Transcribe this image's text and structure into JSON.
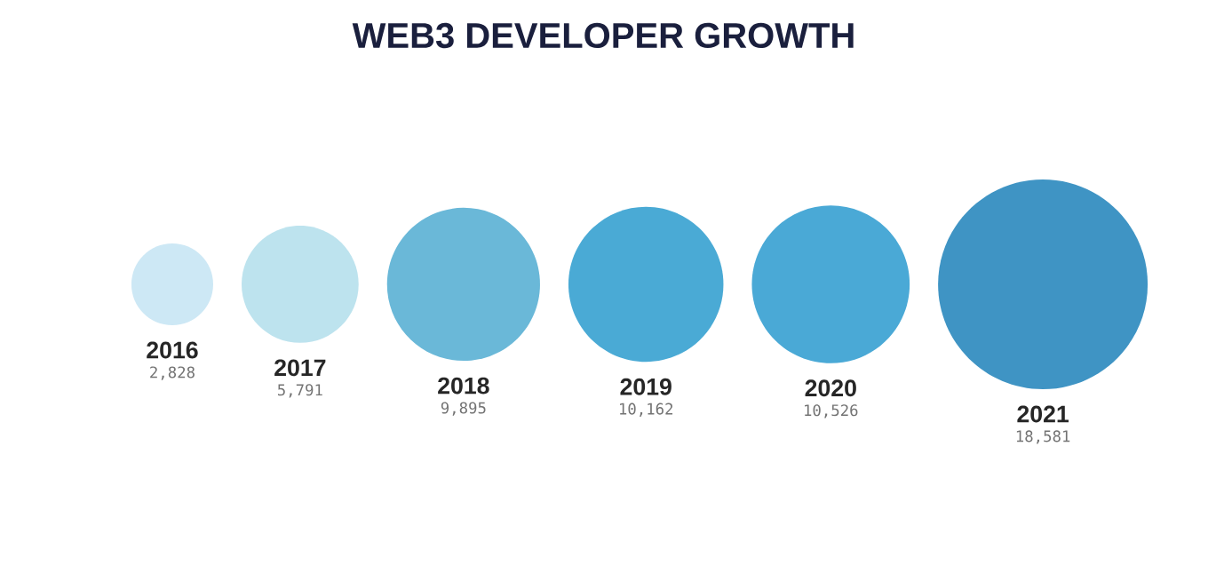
{
  "chart_data": {
    "type": "other",
    "title": "WEB3 DEVELOPER GROWTH",
    "categories": [
      "2016",
      "2017",
      "2018",
      "2019",
      "2020",
      "2021"
    ],
    "values": [
      2828,
      5791,
      9895,
      10162,
      10526,
      18581
    ],
    "value_labels": [
      "2,828",
      "5,791",
      "9,895",
      "10,162",
      "10,526",
      "18,581"
    ],
    "colors": [
      "#cde8f5",
      "#bde3ee",
      "#6ab8d8",
      "#4aaad5",
      "#4aa9d6",
      "#3f94c4"
    ]
  }
}
